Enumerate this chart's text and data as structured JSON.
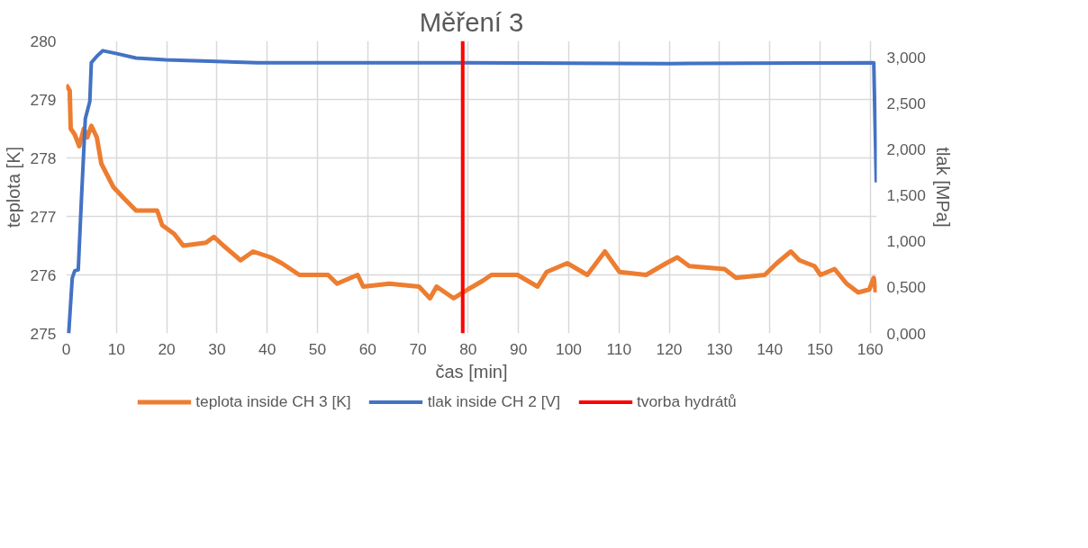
{
  "chart_data": {
    "type": "line",
    "title": "Měření 3",
    "xlabel": "čas [min]",
    "ylabel": "teplota [K]",
    "y2label": "tlak [MPa]",
    "xlim": [
      0,
      161.3
    ],
    "xticks": [
      0,
      10,
      20,
      30,
      40,
      50,
      60,
      70,
      80,
      90,
      100,
      110,
      120,
      130,
      140,
      150,
      160
    ],
    "ylim": [
      275,
      280
    ],
    "yticks": [
      275,
      276,
      277,
      278,
      279,
      280
    ],
    "y2lim": [
      0,
      3.176
    ],
    "y2ticks": [
      {
        "value": 0,
        "label": "0,000"
      },
      {
        "value": 0.5,
        "label": "0,500"
      },
      {
        "value": 1,
        "label": "1,000"
      },
      {
        "value": 1.5,
        "label": "1,500"
      },
      {
        "value": 2,
        "label": "2,000"
      },
      {
        "value": 2.5,
        "label": "2,500"
      },
      {
        "value": 3,
        "label": "3,000"
      }
    ],
    "grid": true,
    "legend": "bottom",
    "marker": "none",
    "line_style": "solid",
    "series": [
      {
        "name": "teplota inside CH 3 [K]",
        "color": "#ed7d31",
        "x": [
          0,
          0.7,
          0.9,
          1.7,
          2.6,
          3.5,
          4.2,
          5.0,
          6.1,
          7.0,
          8.2,
          9.4,
          11.6,
          13.9,
          18.1,
          19.1,
          21.5,
          23.3,
          27.8,
          29.4,
          31.3,
          34.7,
          37.2,
          40.7,
          42.9,
          46.4,
          52.1,
          53.9,
          58.0,
          59.1,
          64.3,
          70.2,
          72.4,
          73.7,
          77.1,
          79.9,
          82.9,
          84.6,
          89.8,
          93.8,
          95.6,
          99.7,
          103.7,
          107.2,
          110.1,
          115.4,
          119.4,
          121.6,
          124.0,
          131.0,
          133.3,
          139.0,
          141.4,
          144.2,
          145.9,
          148.9,
          150.1,
          152.9,
          155.3,
          157.6,
          159.8,
          160.7,
          161.1
        ],
        "values": [
          279.25,
          279.15,
          278.5,
          278.4,
          278.2,
          278.5,
          278.35,
          278.55,
          278.35,
          277.9,
          277.7,
          277.5,
          277.3,
          277.1,
          277.1,
          276.85,
          276.7,
          276.5,
          276.55,
          276.65,
          276.5,
          276.25,
          276.4,
          276.3,
          276.2,
          276.0,
          276.0,
          275.85,
          276.0,
          275.8,
          275.85,
          275.8,
          275.6,
          275.8,
          275.6,
          275.75,
          275.9,
          276.0,
          276.0,
          275.8,
          276.05,
          276.2,
          276.0,
          276.4,
          276.05,
          276.0,
          276.2,
          276.3,
          276.15,
          276.1,
          275.95,
          276.0,
          276.2,
          276.4,
          276.25,
          276.15,
          276.0,
          276.1,
          275.85,
          275.7,
          275.75,
          275.95,
          275.7
        ]
      },
      {
        "name": "tlak inside CH 2 [V]",
        "color": "#4472c4",
        "axis": "y2",
        "x": [
          0.5,
          1.2,
          1.7,
          2.4,
          3.0,
          3.8,
          4.7,
          5.0,
          6.1,
          7.3,
          9.9,
          13.9,
          19.8,
          38.2,
          80,
          120,
          160.7,
          161.2
        ],
        "values": [
          0,
          0.6,
          0.68,
          0.69,
          1.42,
          2.33,
          2.52,
          2.94,
          3.01,
          3.07,
          3.04,
          2.99,
          2.97,
          2.94,
          2.94,
          2.93,
          2.94,
          1.64
        ]
      },
      {
        "name": "tvorba hydrátů",
        "color": "#ff0000",
        "x": [
          78.9,
          78.9
        ],
        "values": [
          275,
          280
        ]
      }
    ]
  }
}
